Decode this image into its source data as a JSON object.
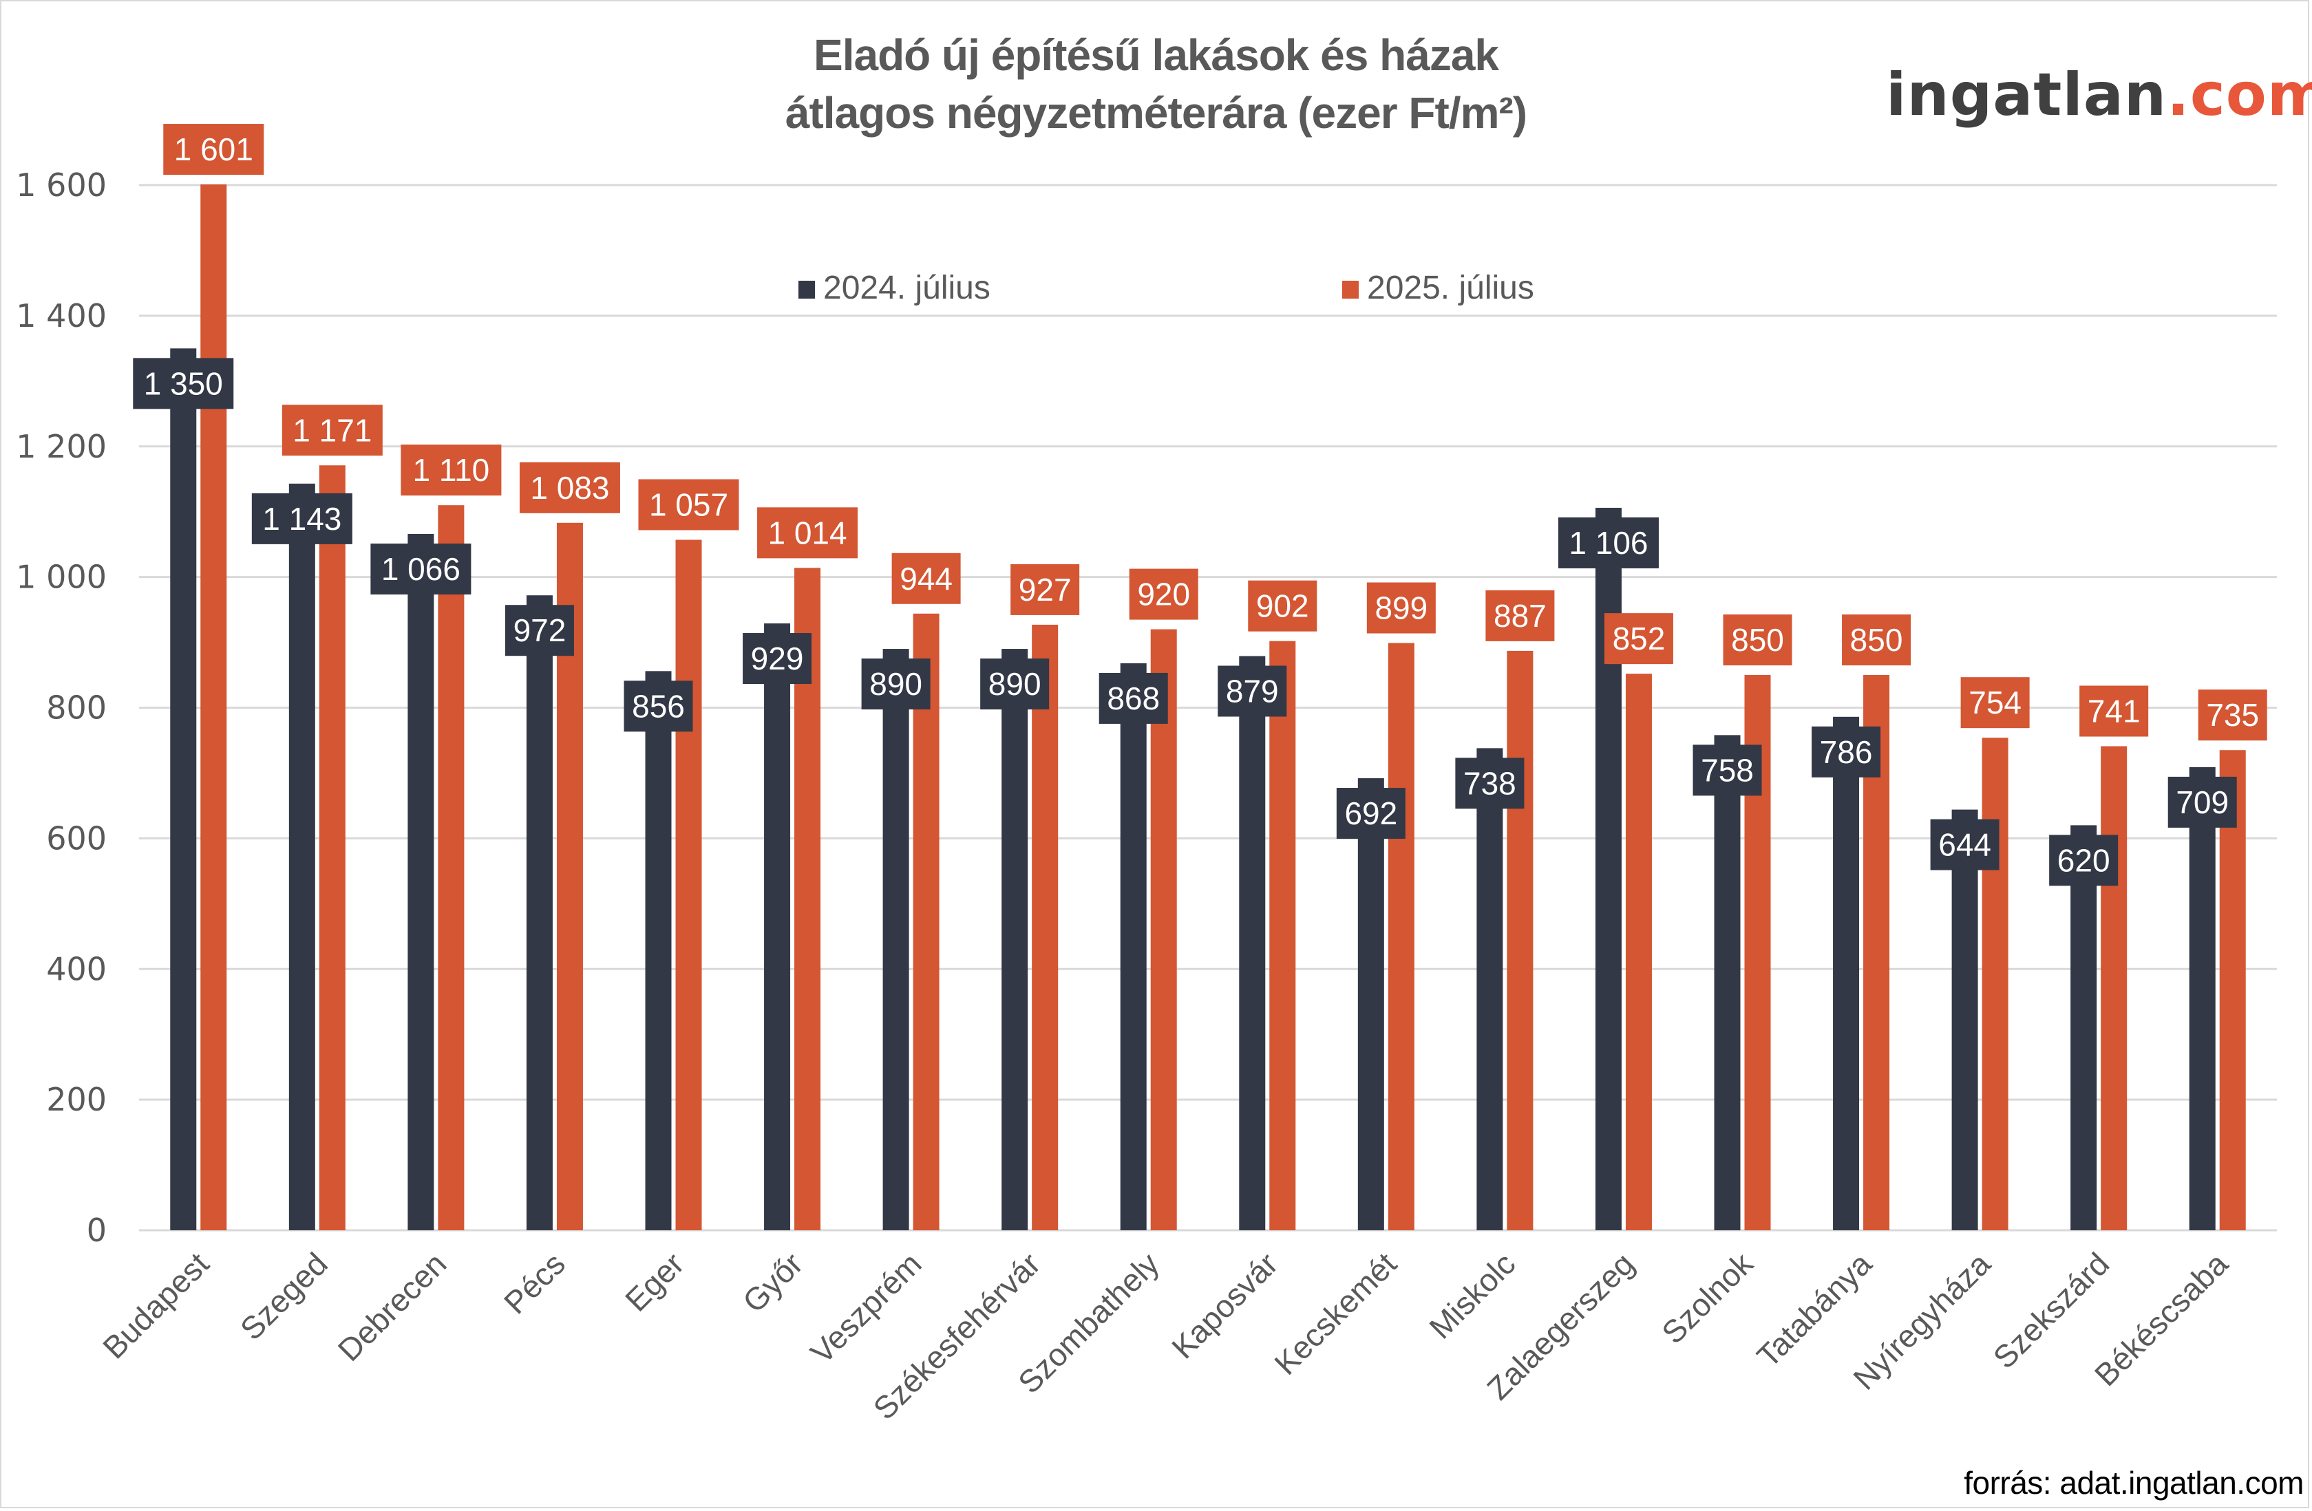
{
  "header": {
    "title_line1": "Eladó új építésű lakások és házak",
    "title_line2": "átlagos négyzetméterára (ezer Ft/m²)"
  },
  "logo": {
    "name_part": "ingatlan",
    "domain_part": ".com"
  },
  "footer": {
    "source": "forrás: adat.ingatlan.com"
  },
  "colors": {
    "series_2024": "#333846",
    "series_2025": "#d45632",
    "grid": "#d9d9d9",
    "axis_text": "#595959",
    "label_text": "#ffffff"
  },
  "chart_data": {
    "type": "bar",
    "title": "Eladó új építésű lakások és házak átlagos négyzetméterára (ezer Ft/m²)",
    "xlabel": "",
    "ylabel": "",
    "ylim": [
      0,
      1600
    ],
    "yticks": [
      0,
      200,
      400,
      600,
      800,
      1000,
      1200,
      1400,
      1600
    ],
    "ytick_labels": [
      "0",
      "200",
      "400",
      "600",
      "800",
      "1 000",
      "1 200",
      "1 400",
      "1 600"
    ],
    "grid": true,
    "legend_position": "top-center",
    "categories": [
      "Budapest",
      "Szeged",
      "Debrecen",
      "Pécs",
      "Eger",
      "Győr",
      "Veszprém",
      "Székesfehérvár",
      "Szombathely",
      "Kaposvár",
      "Kecskemét",
      "Miskolc",
      "Zalaegerszeg",
      "Szolnok",
      "Tatabánya",
      "Nyíregyháza",
      "Szekszárd",
      "Békéscsaba"
    ],
    "series": [
      {
        "name": "2024. július",
        "color": "#333846",
        "values": [
          1350,
          1143,
          1066,
          972,
          856,
          929,
          890,
          890,
          868,
          879,
          692,
          738,
          1106,
          758,
          786,
          644,
          620,
          709
        ],
        "labels": [
          "1 350",
          "1 143",
          "1 066",
          "972",
          "856",
          "929",
          "890",
          "890",
          "868",
          "879",
          "692",
          "738",
          "1 106",
          "758",
          "786",
          "644",
          "620",
          "709"
        ]
      },
      {
        "name": "2025. július",
        "color": "#d45632",
        "values": [
          1601,
          1171,
          1110,
          1083,
          1057,
          1014,
          944,
          927,
          920,
          902,
          899,
          887,
          852,
          850,
          850,
          754,
          741,
          735
        ],
        "labels": [
          "1 601",
          "1 171",
          "1 110",
          "1 083",
          "1 057",
          "1 014",
          "944",
          "927",
          "920",
          "902",
          "899",
          "887",
          "852",
          "850",
          "850",
          "754",
          "741",
          "735"
        ]
      }
    ]
  }
}
